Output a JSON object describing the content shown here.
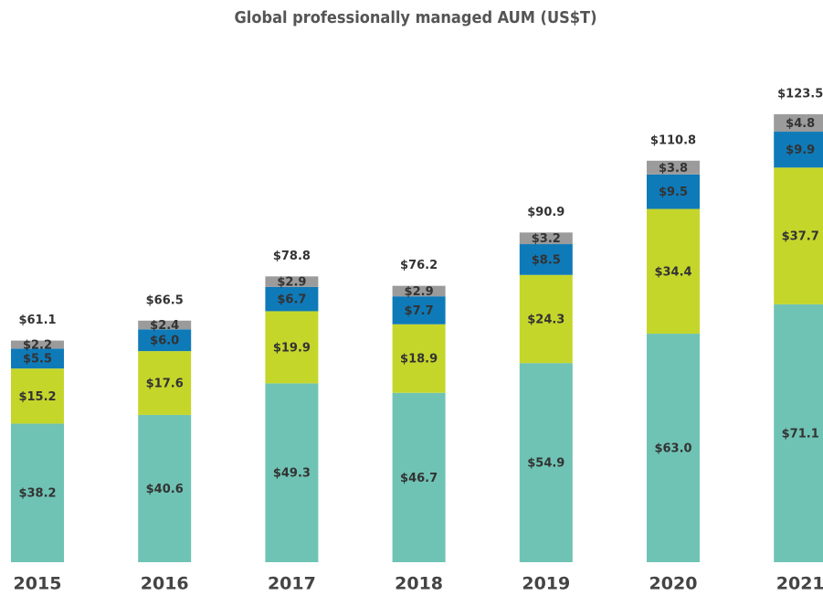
{
  "chart_data": {
    "type": "stacked_bar",
    "title": "Global professionally managed AUM (US$T)",
    "categories": [
      "2015",
      "2016",
      "2017",
      "2018",
      "2019",
      "2020",
      "2021"
    ],
    "series": [
      {
        "color": "#6fc3b4",
        "values": [
          38.2,
          40.6,
          49.3,
          46.7,
          54.9,
          63.0,
          71.1
        ],
        "value_labels": [
          "$38.2",
          "$40.6",
          "$49.3",
          "$46.7",
          "$54.9",
          "$63.0",
          "$71.1"
        ]
      },
      {
        "color": "#c5d62b",
        "values": [
          15.2,
          17.6,
          19.9,
          18.9,
          24.3,
          34.4,
          37.7
        ],
        "value_labels": [
          "$15.2",
          "$17.6",
          "$19.9",
          "$18.9",
          "$24.3",
          "$34.4",
          "$37.7"
        ]
      },
      {
        "color": "#0f7ab8",
        "values": [
          5.5,
          6.0,
          6.7,
          7.7,
          8.5,
          9.5,
          9.9
        ],
        "value_labels": [
          "$5.5",
          "$6.0",
          "$6.7",
          "$7.7",
          "$8.5",
          "$9.5",
          "$9.9"
        ]
      },
      {
        "color": "#9b9b9b",
        "values": [
          2.2,
          2.4,
          2.9,
          2.9,
          3.2,
          3.8,
          4.8
        ],
        "value_labels": [
          "$2.2",
          "$2.4",
          "$2.9",
          "$2.9",
          "$3.2",
          "$3.8",
          "$4.8"
        ]
      }
    ],
    "totals": [
      61.1,
      66.5,
      78.8,
      76.2,
      90.9,
      110.8,
      123.5
    ],
    "total_labels": [
      "$61.1",
      "$66.5",
      "$78.8",
      "$76.2",
      "$90.9",
      "$110.8",
      "$123.5"
    ]
  }
}
